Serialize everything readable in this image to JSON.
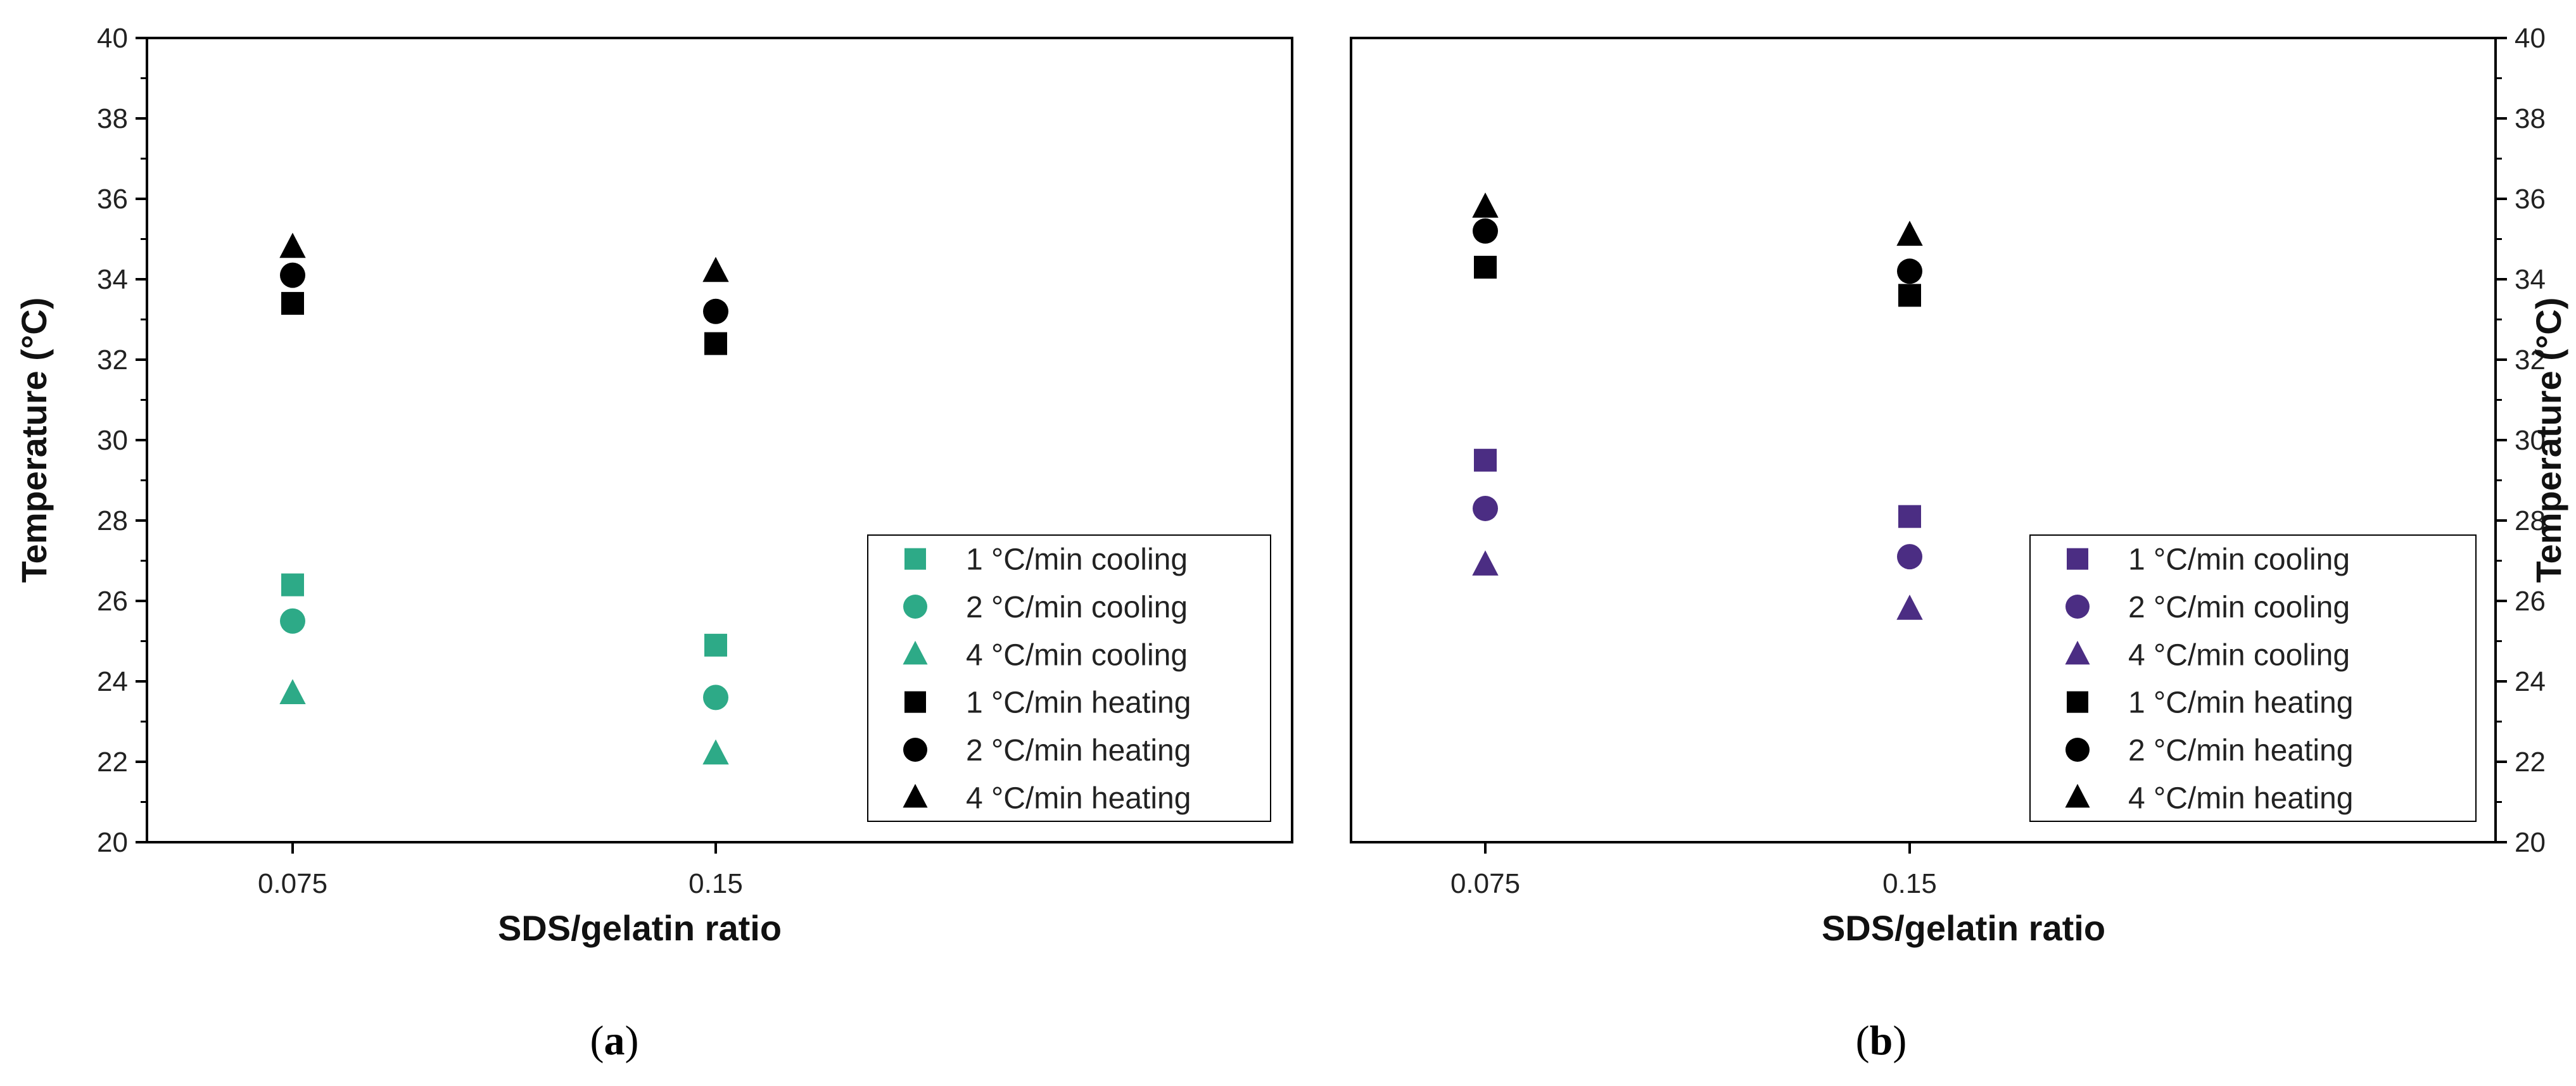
{
  "chart_data": [
    {
      "type": "scatter",
      "panel_label": "a",
      "xlabel": "SDS/gelatin ratio",
      "ylabel": "Temperature (°C)",
      "ylabel_side": "left",
      "categories": [
        "0.075",
        "0.15"
      ],
      "ylim": [
        20,
        40
      ],
      "yticks": [
        "20",
        "22",
        "24",
        "26",
        "28",
        "30",
        "32",
        "34",
        "36",
        "38",
        "40"
      ],
      "grid": false,
      "legend_position": "bottom-right",
      "series": [
        {
          "name": "1 °C/min cooling",
          "marker": "square",
          "color": "#2daa87",
          "values": [
            26.4,
            24.9
          ]
        },
        {
          "name": "2 °C/min cooling",
          "marker": "circle",
          "color": "#2daa87",
          "values": [
            25.5,
            23.6
          ]
        },
        {
          "name": "4 °C/min cooling",
          "marker": "triangle",
          "color": "#2daa87",
          "values": [
            23.7,
            22.2
          ]
        },
        {
          "name": "1 °C/min heating",
          "marker": "square",
          "color": "#000000",
          "values": [
            33.4,
            32.4
          ]
        },
        {
          "name": "2 °C/min heating",
          "marker": "circle",
          "color": "#000000",
          "values": [
            34.1,
            33.2
          ]
        },
        {
          "name": "4 °C/min heating",
          "marker": "triangle",
          "color": "#000000",
          "values": [
            34.8,
            34.2
          ]
        }
      ]
    },
    {
      "type": "scatter",
      "panel_label": "b",
      "xlabel": "SDS/gelatin ratio",
      "ylabel": "Temperature (°C)",
      "ylabel_side": "right",
      "categories": [
        "0.075",
        "0.15"
      ],
      "ylim": [
        20,
        40
      ],
      "yticks": [
        "20",
        "22",
        "24",
        "26",
        "28",
        "30",
        "32",
        "34",
        "36",
        "38",
        "40"
      ],
      "grid": false,
      "legend_position": "bottom-right",
      "series": [
        {
          "name": "1 °C/min cooling",
          "marker": "square",
          "color": "#4b2d83",
          "values": [
            29.5,
            28.1
          ]
        },
        {
          "name": "2 °C/min cooling",
          "marker": "circle",
          "color": "#4b2d83",
          "values": [
            28.3,
            27.1
          ]
        },
        {
          "name": "4 °C/min cooling",
          "marker": "triangle",
          "color": "#4b2d83",
          "values": [
            26.9,
            25.8
          ]
        },
        {
          "name": "1 °C/min heating",
          "marker": "square",
          "color": "#000000",
          "values": [
            34.3,
            33.6
          ]
        },
        {
          "name": "2 °C/min heating",
          "marker": "circle",
          "color": "#000000",
          "values": [
            35.2,
            34.2
          ]
        },
        {
          "name": "4 °C/min heating",
          "marker": "triangle",
          "color": "#000000",
          "values": [
            35.8,
            35.1
          ]
        }
      ]
    }
  ]
}
